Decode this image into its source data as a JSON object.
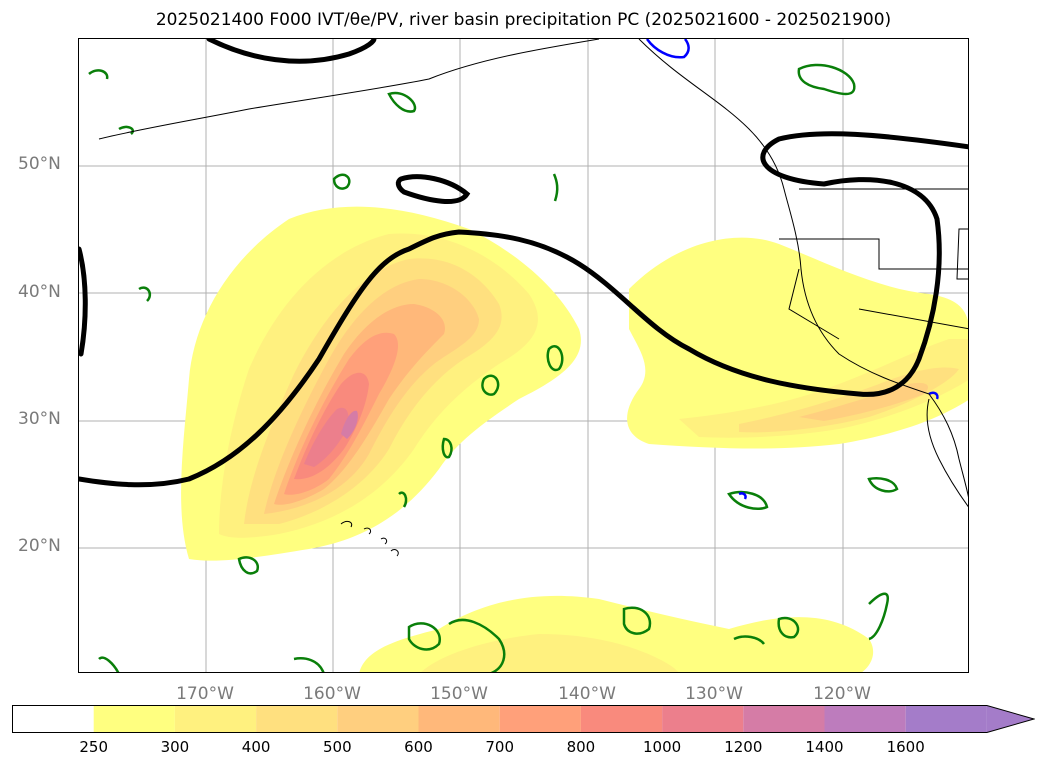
{
  "title": "2025021400 F000 IVT/θe/PV, river basin precipitation PC (2025021600 - 2025021900)",
  "map": {
    "region": "North Pacific / US West Coast",
    "lat_labels": [
      "50°N",
      "40°N",
      "30°N",
      "20°N"
    ],
    "lon_labels": [
      "170°W",
      "160°W",
      "150°W",
      "140°W",
      "130°W",
      "120°W"
    ],
    "grid": true
  },
  "colorbar": {
    "ticks": [
      "250",
      "300",
      "400",
      "500",
      "600",
      "700",
      "800",
      "1000",
      "1200",
      "1400",
      "1600"
    ],
    "colors": [
      "#ffffff",
      "#ffff80",
      "#fff17f",
      "#ffe07f",
      "#ffcf7f",
      "#ffb87a",
      "#ffa07a",
      "#f98a7d",
      "#ec7f8c",
      "#d57ca6",
      "#bd7cbd",
      "#a47cc9"
    ],
    "extend": "max"
  },
  "contour_colors": {
    "theta_e": "#000000",
    "pv_positive": "#0a7f0a",
    "pv_negative": "#0000ff"
  }
}
